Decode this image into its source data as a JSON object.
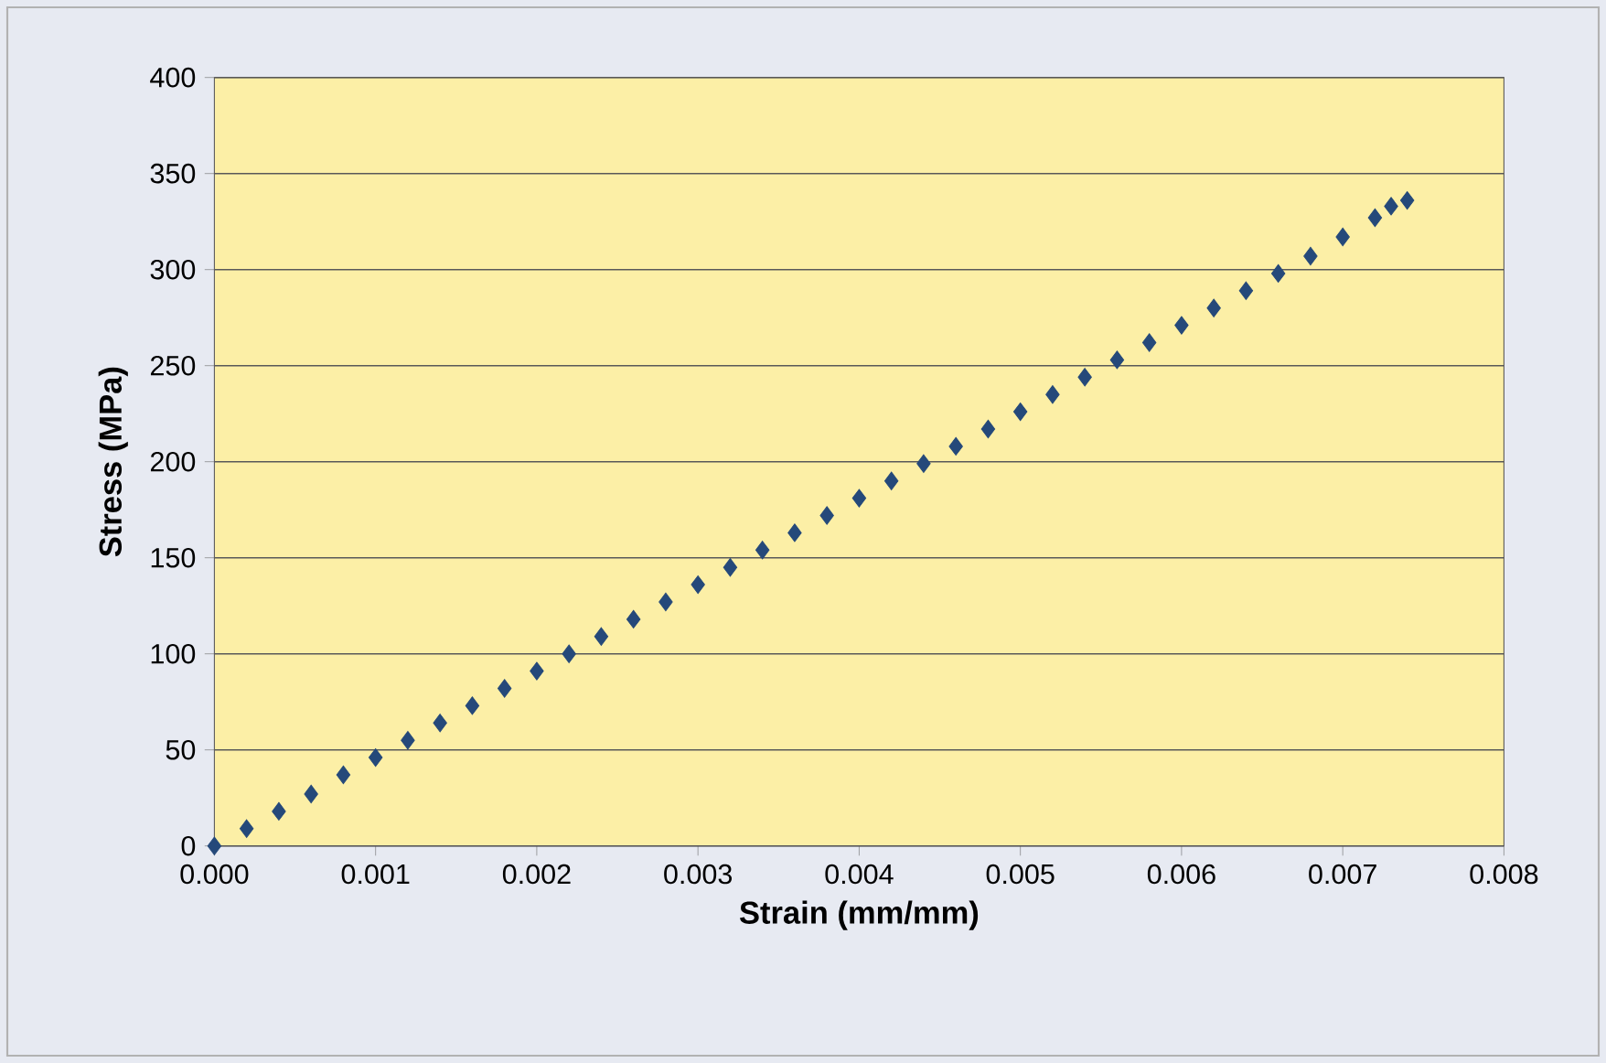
{
  "chart_data": {
    "type": "scatter",
    "xlabel": "Strain (mm/mm)",
    "ylabel": "Stress (MPa)",
    "x": [
      0,
      0.0002,
      0.0004,
      0.0006,
      0.0008,
      0.001,
      0.0012,
      0.0014,
      0.0016,
      0.0018,
      0.002,
      0.0022,
      0.0024,
      0.0026,
      0.0028,
      0.003,
      0.0032,
      0.0034,
      0.0036,
      0.0038,
      0.004,
      0.0042,
      0.0044,
      0.0046,
      0.0048,
      0.005,
      0.0052,
      0.0054,
      0.0056,
      0.0058,
      0.006,
      0.0062,
      0.0064,
      0.0066,
      0.0068,
      0.007,
      0.0072,
      0.0073,
      0.0074
    ],
    "values": [
      0,
      9,
      18,
      27,
      37,
      46,
      55,
      64,
      73,
      82,
      91,
      100,
      109,
      118,
      127,
      136,
      145,
      154,
      163,
      172,
      181,
      190,
      199,
      208,
      217,
      226,
      235,
      244,
      253,
      262,
      271,
      280,
      289,
      298,
      307,
      317,
      327,
      333,
      336
    ],
    "color": "#25497a",
    "marker": "diamond",
    "grid": "y",
    "xlim": [
      0,
      0.008
    ],
    "xticks": [
      {
        "value": 0,
        "label": "0.000"
      },
      {
        "value": 0.001,
        "label": "0.001"
      },
      {
        "value": 0.002,
        "label": "0.002"
      },
      {
        "value": 0.003,
        "label": "0.003"
      },
      {
        "value": 0.004,
        "label": "0.004"
      },
      {
        "value": 0.005,
        "label": "0.005"
      },
      {
        "value": 0.006,
        "label": "0.006"
      },
      {
        "value": 0.007,
        "label": "0.007"
      },
      {
        "value": 0.008,
        "label": "0.008"
      }
    ],
    "ylim": [
      0,
      400
    ],
    "yticks": [
      0,
      50,
      100,
      150,
      200,
      250,
      300,
      350,
      400
    ]
  }
}
